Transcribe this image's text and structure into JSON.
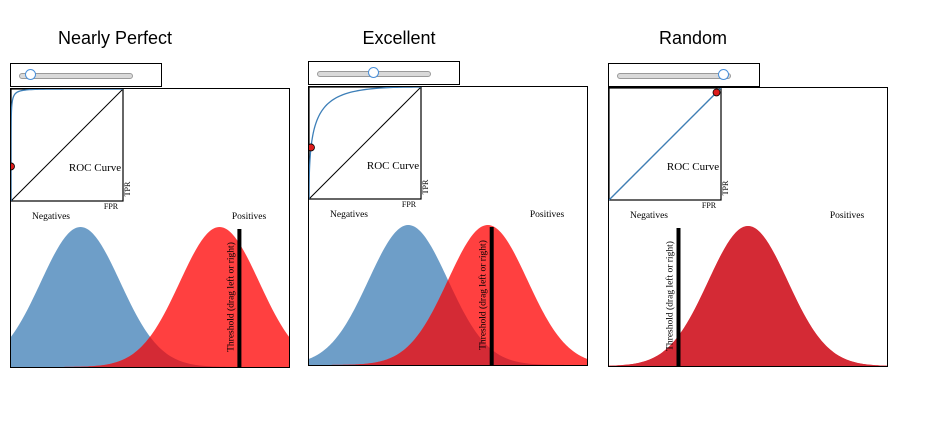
{
  "panels": [
    {
      "title": "Nearly Perfect",
      "slider_value": 0.1,
      "separation": 3.5,
      "threshold_rel": 0.5,
      "roc_label": "ROC Curve",
      "tpr_label": "TPR",
      "fpr_label": "FPR",
      "negatives_label": "Negatives",
      "positives_label": "Positives",
      "threshold_label": "Threshold (drag left or right)"
    },
    {
      "title": "Excellent",
      "slider_value": 0.5,
      "separation": 2.0,
      "threshold_rel": 0.1,
      "roc_label": "ROC Curve",
      "tpr_label": "TPR",
      "fpr_label": "FPR",
      "negatives_label": "Negatives",
      "positives_label": "Positives",
      "threshold_label": "Threshold (drag left or right)"
    },
    {
      "title": "Random",
      "slider_value": 0.95,
      "separation": 0.0,
      "threshold_rel": -1.75,
      "roc_label": "ROC Curve",
      "tpr_label": "TPR",
      "fpr_label": "FPR",
      "negatives_label": "Negatives",
      "positives_label": "Positives",
      "threshold_label": "Threshold (drag left or right)"
    }
  ],
  "colors": {
    "negatives": "#6e9ec8",
    "positives": "#ff4040",
    "overlap": "#d42a35",
    "roc_curve": "#3d7fb8",
    "roc_dot": "#dd1c1c",
    "threshold": "#000000"
  }
}
